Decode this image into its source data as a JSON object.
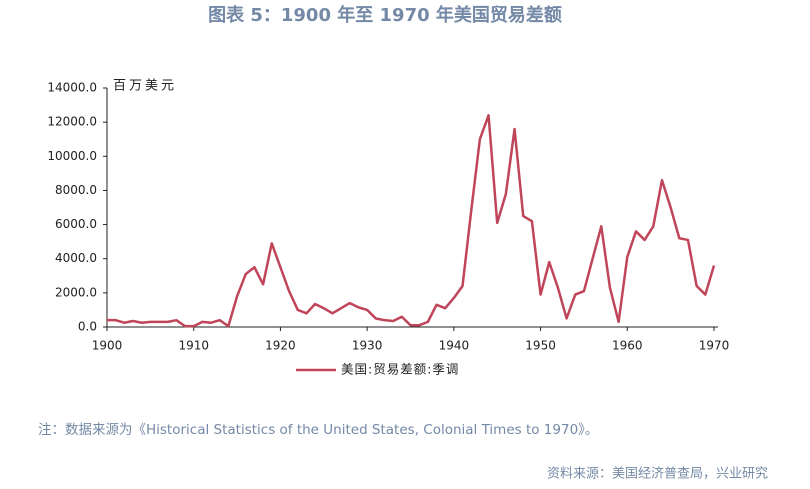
{
  "chart_data": {
    "type": "line",
    "title": "图表 5：1900 年至 1970 年美国贸易差额",
    "y_label": "百万美元",
    "x": [
      1900,
      1901,
      1902,
      1903,
      1904,
      1905,
      1906,
      1907,
      1908,
      1909,
      1910,
      1911,
      1912,
      1913,
      1914,
      1915,
      1916,
      1917,
      1918,
      1919,
      1920,
      1921,
      1922,
      1923,
      1924,
      1925,
      1926,
      1927,
      1928,
      1929,
      1930,
      1931,
      1932,
      1933,
      1934,
      1935,
      1936,
      1937,
      1938,
      1939,
      1940,
      1941,
      1942,
      1943,
      1944,
      1945,
      1946,
      1947,
      1948,
      1949,
      1950,
      1951,
      1952,
      1953,
      1954,
      1955,
      1956,
      1957,
      1958,
      1959,
      1960,
      1961,
      1962,
      1963,
      1964,
      1965,
      1966,
      1967,
      1968,
      1969,
      1970
    ],
    "series": [
      {
        "name": "美国:贸易差额:季调",
        "color": "#c0455a",
        "values": [
          400,
          400,
          250,
          350,
          250,
          300,
          300,
          300,
          400,
          50,
          50,
          300,
          250,
          400,
          50,
          1800,
          3100,
          3500,
          2500,
          4900,
          3500,
          2100,
          1000,
          800,
          1350,
          1100,
          800,
          1100,
          1400,
          1150,
          1000,
          500,
          400,
          350,
          600,
          100,
          100,
          300,
          1300,
          1100,
          1700,
          2400,
          6800,
          11000,
          12400,
          6100,
          7800,
          11600,
          6500,
          6200,
          1900,
          3800,
          2300,
          500,
          1900,
          2100,
          4000,
          5900,
          2300,
          300,
          4100,
          5600,
          5100,
          5900,
          8600,
          7000,
          5200,
          5100,
          2400,
          1900,
          3600
        ]
      }
    ],
    "xlim": [
      1900,
      1970
    ],
    "xticks": [
      1900,
      1910,
      1920,
      1930,
      1940,
      1950,
      1960,
      1970
    ],
    "ylim": [
      0,
      14000
    ],
    "yticks": [
      {
        "value": 0,
        "label": "0.0"
      },
      {
        "value": 2000,
        "label": "2000.0"
      },
      {
        "value": 4000,
        "label": "4000.0"
      },
      {
        "value": 6000,
        "label": "6000.0"
      },
      {
        "value": 8000,
        "label": "8000.0"
      },
      {
        "value": 10000,
        "label": "10000.0"
      },
      {
        "value": 12000,
        "label": "12000.0"
      },
      {
        "value": 14000,
        "label": "14000.0"
      }
    ],
    "note": "注：数据来源为《Historical Statistics of the United States, Colonial Times to 1970》。",
    "source": "资料来源：美国经济普查局，兴业研究"
  }
}
